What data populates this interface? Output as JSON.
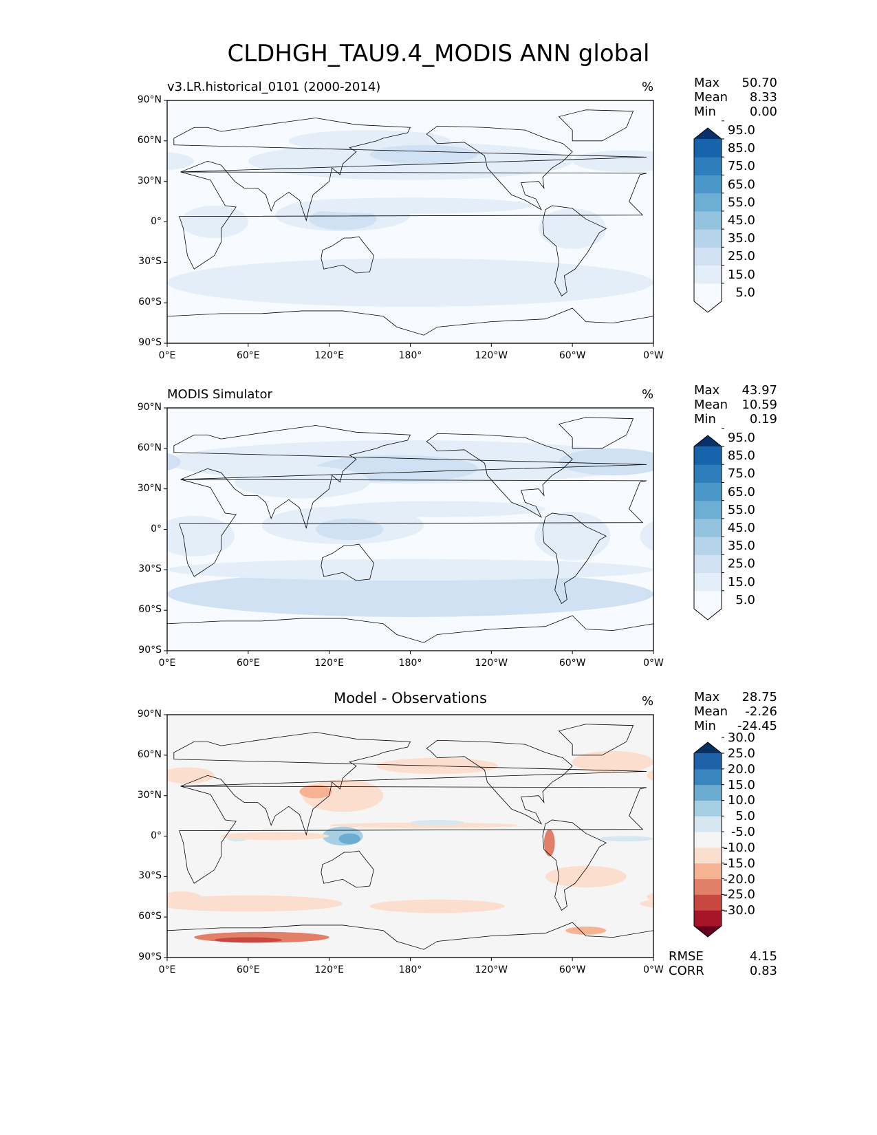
{
  "figure_title": "CLDHGH_TAU9.4_MODIS ANN global",
  "lat_ticks": [
    "90°N",
    "60°N",
    "30°N",
    "0°",
    "30°S",
    "60°S",
    "90°S"
  ],
  "lon_ticks": [
    "0°E",
    "60°E",
    "120°E",
    "180°",
    "120°W",
    "60°W",
    "0°W"
  ],
  "panels": [
    {
      "title": "v3.LR.historical_0101 (2000-2014)",
      "units": "%",
      "stats": {
        "max_label": "Max",
        "max": "50.70",
        "mean_label": "Mean",
        "mean": "8.33",
        "min_label": "Min",
        "min": "0.00"
      },
      "colorbar": {
        "labels": [
          "5.0",
          "15.0",
          "25.0",
          "35.0",
          "45.0",
          "55.0",
          "65.0",
          "75.0",
          "85.0",
          "95.0"
        ],
        "colors": [
          "#f7fbff",
          "#e3eef9",
          "#cfe1f2",
          "#b5d4e9",
          "#93c3df",
          "#6daed5",
          "#4b97c9",
          "#2e7ebc",
          "#1764ab",
          "#084a91",
          "#08306b"
        ]
      }
    },
    {
      "title": "MODIS Simulator",
      "units": "%",
      "stats": {
        "max_label": "Max",
        "max": "43.97",
        "mean_label": "Mean",
        "mean": "10.59",
        "min_label": "Min",
        "min": "0.19"
      },
      "colorbar": {
        "labels": [
          "5.0",
          "15.0",
          "25.0",
          "35.0",
          "45.0",
          "55.0",
          "65.0",
          "75.0",
          "85.0",
          "95.0"
        ],
        "colors": [
          "#f7fbff",
          "#e3eef9",
          "#cfe1f2",
          "#b5d4e9",
          "#93c3df",
          "#6daed5",
          "#4b97c9",
          "#2e7ebc",
          "#1764ab",
          "#084a91",
          "#08306b"
        ]
      }
    },
    {
      "title": "Model - Observations",
      "units": "%",
      "stats": {
        "max_label": "Max",
        "max": "28.75",
        "mean_label": "Mean",
        "mean": "-2.26",
        "min_label": "Min",
        "min": "-24.45"
      },
      "colorbar": {
        "labels": [
          "-30.0",
          "-25.0",
          "-20.0",
          "-15.0",
          "-10.0",
          "-5.0",
          "5.0",
          "10.0",
          "15.0",
          "20.0",
          "25.0",
          "30.0"
        ],
        "colors": [
          "#67001f",
          "#a51429",
          "#c94741",
          "#e27f68",
          "#f6b394",
          "#fcdecf",
          "#f5f5f5",
          "#d6e7f1",
          "#a7cfe4",
          "#6cacd1",
          "#3886bc",
          "#1f62a8",
          "#053061"
        ]
      },
      "rmse_label": "RMSE",
      "rmse": "4.15",
      "corr_label": "CORR",
      "corr": "0.83"
    }
  ]
}
